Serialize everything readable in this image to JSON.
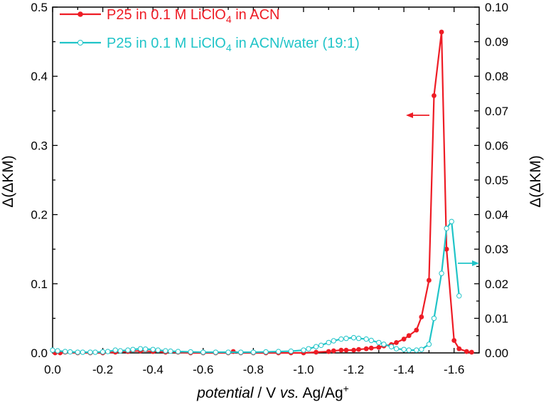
{
  "chart_data": {
    "type": "line",
    "title": "",
    "xlabel": {
      "italic": "potential",
      "mid": " / V ",
      "italic2": "vs.",
      "rest": " Ag/Ag",
      "sup": "+"
    },
    "ylabel_left": "Δ(ΔKM)",
    "ylabel_right": "Δ(ΔKM)",
    "xlim": [
      0.0,
      -1.7
    ],
    "ylim_left": [
      0,
      0.5
    ],
    "ylim_right": [
      0,
      0.1
    ],
    "x_ticks": [
      "0.0",
      "-0.2",
      "-0.4",
      "-0.6",
      "-0.8",
      "-1.0",
      "-1.2",
      "-1.4",
      "-1.6"
    ],
    "x_tick_values": [
      0.0,
      -0.2,
      -0.4,
      -0.6,
      -0.8,
      -1.0,
      -1.2,
      -1.4,
      -1.6
    ],
    "y_left_ticks": [
      "0.0",
      "0.1",
      "0.2",
      "0.3",
      "0.4",
      "0.5"
    ],
    "y_left_tick_values": [
      0.0,
      0.1,
      0.2,
      0.3,
      0.4,
      0.5
    ],
    "y_right_ticks": [
      "0.00",
      "0.01",
      "0.02",
      "0.03",
      "0.04",
      "0.05",
      "0.06",
      "0.07",
      "0.08",
      "0.09",
      "0.10"
    ],
    "y_right_tick_values": [
      0.0,
      0.01,
      0.02,
      0.03,
      0.04,
      0.05,
      0.06,
      0.07,
      0.08,
      0.09,
      0.1
    ],
    "grid": false,
    "legend_position": "top-left",
    "series": [
      {
        "name": {
          "pre": "P25 in 0.1 M LiClO",
          "sub": "4",
          "post": " in ACN"
        },
        "color": "#ee1c25",
        "marker": "filled-circle",
        "axis": "left",
        "x": [
          -0.01,
          -0.03,
          -0.05,
          -0.1,
          -0.15,
          -0.2,
          -0.25,
          -0.3,
          -0.35,
          -0.4,
          -0.45,
          -0.5,
          -0.55,
          -0.6,
          -0.65,
          -0.7,
          -0.72,
          -0.75,
          -0.8,
          -0.85,
          -0.9,
          -0.95,
          -1.0,
          -1.05,
          -1.1,
          -1.12,
          -1.15,
          -1.17,
          -1.2,
          -1.22,
          -1.25,
          -1.27,
          -1.3,
          -1.32,
          -1.35,
          -1.37,
          -1.4,
          -1.42,
          -1.45,
          -1.47,
          -1.5,
          -1.52,
          -1.55,
          -1.57,
          -1.6,
          -1.62,
          -1.65,
          -1.67
        ],
        "y": [
          0.0,
          0.0,
          0.001,
          0.0,
          0.0,
          0.0,
          0.001,
          0.002,
          0.003,
          0.002,
          0.001,
          0.001,
          0.0,
          0.0,
          0.0,
          0.0,
          0.002,
          0.0,
          0.0,
          0.0,
          0.0,
          0.0,
          0.0,
          0.001,
          0.002,
          0.003,
          0.004,
          0.004,
          0.004,
          0.005,
          0.006,
          0.007,
          0.008,
          0.01,
          0.012,
          0.015,
          0.02,
          0.025,
          0.033,
          0.052,
          0.105,
          0.372,
          0.464,
          0.15,
          0.018,
          0.006,
          0.002,
          0.001
        ]
      },
      {
        "name": {
          "pre": "P25 in 0.1 M LiClO",
          "sub": "4",
          "post": " in ACN/water (19:1)"
        },
        "color": "#20c4c8",
        "marker": "open-circle",
        "axis": "right",
        "x": [
          0.0,
          -0.02,
          -0.05,
          -0.07,
          -0.1,
          -0.12,
          -0.15,
          -0.17,
          -0.2,
          -0.22,
          -0.25,
          -0.27,
          -0.3,
          -0.32,
          -0.35,
          -0.37,
          -0.4,
          -0.42,
          -0.45,
          -0.47,
          -0.5,
          -0.55,
          -0.6,
          -0.65,
          -0.7,
          -0.75,
          -0.8,
          -0.85,
          -0.9,
          -0.95,
          -1.0,
          -1.02,
          -1.05,
          -1.07,
          -1.1,
          -1.12,
          -1.15,
          -1.17,
          -1.2,
          -1.22,
          -1.25,
          -1.27,
          -1.3,
          -1.32,
          -1.35,
          -1.37,
          -1.4,
          -1.42,
          -1.45,
          -1.47,
          -1.5,
          -1.52,
          -1.55,
          -1.57,
          -1.59,
          -1.62
        ],
        "y": [
          0.0008,
          0.0006,
          0.0004,
          0.0003,
          0.0002,
          0.0002,
          0.0002,
          0.0002,
          0.0003,
          0.0004,
          0.0008,
          0.0006,
          0.0008,
          0.001,
          0.0012,
          0.0011,
          0.001,
          0.0008,
          0.0006,
          0.0005,
          0.0004,
          0.0003,
          0.0002,
          0.0002,
          0.0002,
          0.0002,
          0.0002,
          0.0003,
          0.0004,
          0.0005,
          0.0008,
          0.0012,
          0.0018,
          0.0022,
          0.003,
          0.0035,
          0.004,
          0.0042,
          0.0044,
          0.0042,
          0.004,
          0.0036,
          0.003,
          0.0025,
          0.0018,
          0.0012,
          0.001,
          0.0008,
          0.0008,
          0.001,
          0.0025,
          0.01,
          0.023,
          0.036,
          0.038,
          0.0165
        ]
      }
    ],
    "annotations": [
      {
        "type": "arrow",
        "direction": "left",
        "color": "#ee1c25",
        "points_to_axis": "left"
      },
      {
        "type": "arrow",
        "direction": "right",
        "color": "#20c4c8",
        "points_to_axis": "right"
      }
    ]
  }
}
